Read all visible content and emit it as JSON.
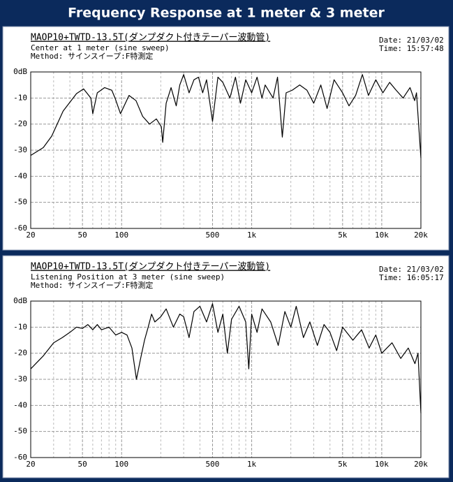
{
  "page_title": "Frequency Response at 1 meter & 3 meter",
  "chart_data": [
    {
      "type": "line",
      "title": "MAOP10+TWTD-13.5T(ダンプダクト付きテーパー波動管)",
      "notes": [
        "Center at 1 meter (sine sweep)",
        "Method: サインスイープ:F特測定"
      ],
      "date": "Date: 21/03/02",
      "time": "Time: 15:57:48",
      "xscale": "log",
      "grid": true,
      "color": "#000000",
      "xlim": [
        20,
        20000
      ],
      "ylim": [
        -60,
        0
      ],
      "xticks": [
        20,
        50,
        100,
        500,
        {
          "value": 1000,
          "label": "1k"
        },
        {
          "value": 5000,
          "label": "5k"
        },
        {
          "value": 10000,
          "label": "10k"
        },
        {
          "value": 20000,
          "label": "20k"
        }
      ],
      "xgrid": [
        30,
        40,
        60,
        70,
        80,
        90,
        200,
        300,
        400,
        600,
        700,
        800,
        900,
        2000,
        3000,
        4000,
        6000,
        7000,
        8000,
        9000
      ],
      "yticks": [
        {
          "value": 0,
          "label": "0dB"
        },
        -10,
        -20,
        -30,
        -40,
        -50,
        -60
      ],
      "x": [
        20,
        25,
        29,
        35.5,
        45,
        51,
        58,
        60,
        65,
        74,
        84,
        89,
        98,
        114,
        129,
        145,
        164,
        185,
        202,
        207,
        220,
        240,
        263,
        280,
        300,
        330,
        360,
        390,
        420,
        450,
        500,
        550,
        600,
        680,
        750,
        820,
        900,
        1000,
        1100,
        1200,
        1270,
        1460,
        1580,
        1720,
        1840,
        2050,
        2340,
        2660,
        3000,
        3400,
        3800,
        4300,
        5000,
        5600,
        6300,
        7100,
        7900,
        9000,
        10200,
        11500,
        12900,
        14600,
        16500,
        17900,
        18500,
        20000
      ],
      "values": [
        -32,
        -29,
        -24.6,
        -15,
        -8.3,
        -6.5,
        -10,
        -16,
        -8,
        -6,
        -7,
        -10,
        -16,
        -9,
        -11,
        -17,
        -20,
        -18,
        -21,
        -27,
        -12,
        -6,
        -13,
        -5,
        -1,
        -8,
        -3,
        -2,
        -8,
        -3,
        -19,
        -2,
        -4,
        -10,
        -2,
        -12,
        -3,
        -8,
        -2,
        -10,
        -5,
        -10,
        -2,
        -25,
        -8,
        -7,
        -5,
        -7,
        -12,
        -5,
        -14,
        -3,
        -8,
        -13,
        -9,
        -1,
        -9,
        -3,
        -8,
        -4,
        -7,
        -10,
        -6,
        -11,
        -8,
        -33
      ]
    },
    {
      "type": "line",
      "title": "MAOP10+TWTD-13.5T(ダンプダクト付きテーパー波動管)",
      "notes": [
        "Listening Position at 3 meter (sine sweep)",
        "Method: サインスイープ:F特測定"
      ],
      "date": "Date: 21/03/02",
      "time": "Time: 16:05:17",
      "xscale": "log",
      "grid": true,
      "color": "#000000",
      "xlim": [
        20,
        20000
      ],
      "ylim": [
        -60,
        0
      ],
      "xticks": [
        20,
        50,
        100,
        500,
        {
          "value": 1000,
          "label": "1k"
        },
        {
          "value": 5000,
          "label": "5k"
        },
        {
          "value": 10000,
          "label": "10k"
        },
        {
          "value": 20000,
          "label": "20k"
        }
      ],
      "xgrid": [
        30,
        40,
        60,
        70,
        80,
        90,
        200,
        300,
        400,
        600,
        700,
        800,
        900,
        2000,
        3000,
        4000,
        6000,
        7000,
        8000,
        9000
      ],
      "yticks": [
        {
          "value": 0,
          "label": "0dB"
        },
        -10,
        -20,
        -30,
        -40,
        -50,
        -60
      ],
      "x": [
        20,
        25,
        30,
        35,
        40,
        45,
        50,
        55,
        60,
        65,
        70,
        80,
        90,
        100,
        110,
        120,
        130,
        140,
        150,
        160,
        170,
        180,
        200,
        220,
        250,
        280,
        300,
        330,
        360,
        400,
        450,
        500,
        550,
        600,
        650,
        700,
        800,
        900,
        950,
        1000,
        1100,
        1200,
        1400,
        1600,
        1800,
        2000,
        2200,
        2500,
        2800,
        3200,
        3600,
        4000,
        4500,
        5000,
        6000,
        7000,
        8000,
        9000,
        10000,
        12000,
        14000,
        16000,
        18000,
        19000,
        20000
      ],
      "values": [
        -26,
        -21,
        -16,
        -14,
        -12,
        -10,
        -10.5,
        -9,
        -11,
        -9,
        -11,
        -10,
        -13,
        -12,
        -13,
        -18,
        -30,
        -22,
        -15,
        -10,
        -5,
        -8,
        -6,
        -3,
        -10,
        -5,
        -6,
        -14,
        -4,
        -2,
        -8,
        -1,
        -12,
        -5,
        -20,
        -7,
        -2,
        -8,
        -26,
        -5,
        -12,
        -3,
        -8,
        -17,
        -4,
        -10,
        -2,
        -14,
        -8,
        -17,
        -9,
        -12,
        -19,
        -10,
        -15,
        -11,
        -18,
        -13,
        -20,
        -16,
        -22,
        -18,
        -24,
        -20,
        -43
      ]
    }
  ]
}
